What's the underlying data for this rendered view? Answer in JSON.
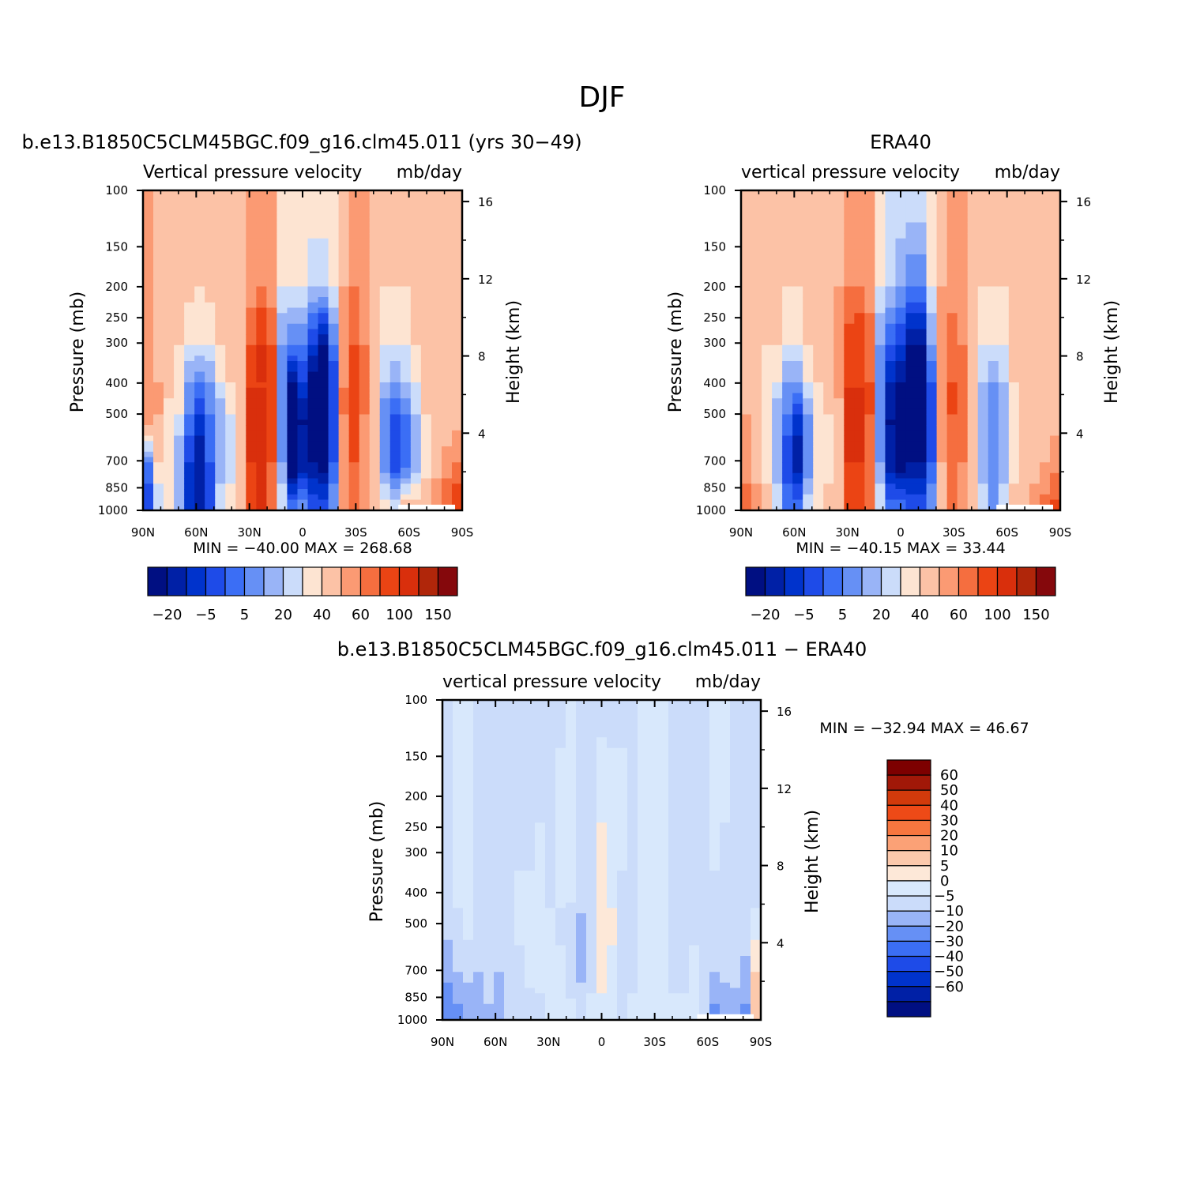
{
  "figure": {
    "title": "DJF"
  },
  "chart_data": [
    {
      "type": "heatmap",
      "id": "model",
      "title": "b.e13.B1850C5CLM45BGC.f09_g16.clm45.011 (yrs 30-49)",
      "subtitle_left": "Vertical pressure velocity",
      "subtitle_right": "mb/day",
      "ylabel": "Pressure (mb)",
      "y2label": "Height (km)",
      "x_ticks": [
        "90N",
        "60N",
        "30N",
        "0",
        "30S",
        "60S",
        "90S"
      ],
      "y_ticks": [
        "100",
        "150",
        "200",
        "250",
        "300",
        "400",
        "500",
        "700",
        "850",
        "1000"
      ],
      "y2_ticks": [
        "16",
        "12",
        "8",
        "4"
      ],
      "stats": "MIN = -40.00   MAX = 268.68",
      "colorbar_labels": [
        "-20",
        "-5",
        "5",
        "20",
        "40",
        "60",
        "100",
        "150"
      ],
      "field": {
        "x_centers": [
          -90,
          -84,
          -78,
          -72,
          -66,
          -60,
          -54,
          -48,
          -42,
          -36,
          -30,
          -24,
          -18,
          -12,
          -6,
          0,
          6,
          12,
          18,
          24,
          30,
          36,
          42,
          48,
          54,
          60,
          66,
          72,
          78,
          84,
          90
        ],
        "columns": [
          [
            20,
            20,
            20,
            25,
            30,
            -10,
            -20
          ],
          [
            15,
            15,
            15,
            20,
            20,
            10,
            0
          ],
          [
            15,
            15,
            15,
            15,
            5,
            5,
            10
          ],
          [
            15,
            15,
            10,
            5,
            5,
            -5,
            -5
          ],
          [
            12,
            12,
            5,
            -5,
            -10,
            -20,
            -25
          ],
          [
            12,
            10,
            5,
            -10,
            -20,
            -30,
            -25
          ],
          [
            12,
            12,
            5,
            -5,
            -10,
            -15,
            -20
          ],
          [
            12,
            12,
            10,
            5,
            -5,
            -5,
            5
          ],
          [
            15,
            12,
            10,
            10,
            5,
            0,
            10
          ],
          [
            20,
            15,
            15,
            10,
            10,
            12,
            15
          ],
          [
            20,
            25,
            40,
            60,
            60,
            60,
            45
          ],
          [
            20,
            30,
            60,
            60,
            60,
            60,
            60
          ],
          [
            20,
            25,
            40,
            40,
            40,
            40,
            30
          ],
          [
            10,
            5,
            -5,
            -10,
            -10,
            -5,
            5
          ],
          [
            10,
            5,
            -10,
            -30,
            -40,
            -40,
            -10
          ],
          [
            10,
            5,
            -10,
            -20,
            -30,
            -30,
            -5
          ],
          [
            10,
            0,
            -20,
            -35,
            -40,
            -30,
            -15
          ],
          [
            10,
            0,
            -30,
            -40,
            -40,
            -35,
            -15
          ],
          [
            10,
            5,
            -10,
            -20,
            -20,
            -15,
            -5
          ],
          [
            15,
            20,
            25,
            30,
            30,
            25,
            20
          ],
          [
            20,
            30,
            40,
            45,
            45,
            40,
            30
          ],
          [
            20,
            25,
            30,
            35,
            30,
            25,
            25
          ],
          [
            15,
            15,
            15,
            10,
            10,
            10,
            10
          ],
          [
            15,
            10,
            5,
            0,
            -10,
            -10,
            10
          ],
          [
            15,
            10,
            5,
            -5,
            -15,
            -20,
            5
          ],
          [
            15,
            10,
            5,
            0,
            -10,
            -15,
            15
          ],
          [
            15,
            12,
            10,
            5,
            0,
            -5,
            15
          ],
          [
            15,
            15,
            15,
            15,
            10,
            5,
            20
          ],
          [
            10,
            10,
            10,
            10,
            10,
            15,
            30
          ],
          [
            10,
            10,
            10,
            10,
            10,
            25,
            40
          ],
          [
            10,
            10,
            10,
            10,
            15,
            30,
            50
          ]
        ]
      }
    },
    {
      "type": "heatmap",
      "id": "obs",
      "title": "ERA40",
      "subtitle_left": "vertical pressure velocity",
      "subtitle_right": "mb/day",
      "ylabel": "Pressure (mb)",
      "y2label": "Height (km)",
      "x_ticks": [
        "90N",
        "60N",
        "30N",
        "0",
        "30S",
        "60S",
        "90S"
      ],
      "y_ticks": [
        "100",
        "150",
        "200",
        "250",
        "300",
        "400",
        "500",
        "700",
        "850",
        "1000"
      ],
      "y2_ticks": [
        "16",
        "12",
        "8",
        "4"
      ],
      "stats": "MIN = -40.15   MAX = 33.44",
      "colorbar_labels": [
        "-20",
        "-5",
        "5",
        "20",
        "40",
        "60",
        "100",
        "150"
      ],
      "field": {
        "x_centers": [
          -90,
          -84,
          -78,
          -72,
          -66,
          -60,
          -54,
          -48,
          -42,
          -36,
          -30,
          -24,
          -18,
          -12,
          -6,
          0,
          6,
          12,
          18,
          24,
          30,
          36,
          42,
          48,
          54,
          60,
          66,
          72,
          78,
          84,
          90
        ],
        "columns": [
          [
            15,
            15,
            15,
            15,
            20,
            25,
            35
          ],
          [
            15,
            12,
            10,
            10,
            10,
            15,
            25
          ],
          [
            15,
            12,
            10,
            5,
            5,
            5,
            15
          ],
          [
            15,
            12,
            10,
            5,
            -5,
            -5,
            5
          ],
          [
            12,
            10,
            5,
            -5,
            -10,
            -20,
            -10
          ],
          [
            12,
            10,
            5,
            -5,
            -20,
            -30,
            -10
          ],
          [
            12,
            10,
            10,
            5,
            -5,
            -10,
            5
          ],
          [
            15,
            12,
            15,
            10,
            5,
            5,
            10
          ],
          [
            15,
            15,
            20,
            15,
            10,
            5,
            15
          ],
          [
            15,
            20,
            30,
            25,
            15,
            15,
            20
          ],
          [
            20,
            30,
            45,
            60,
            60,
            60,
            40
          ],
          [
            20,
            30,
            50,
            60,
            60,
            60,
            50
          ],
          [
            20,
            25,
            35,
            40,
            40,
            35,
            30
          ],
          [
            10,
            5,
            -5,
            -10,
            -10,
            -5,
            5
          ],
          [
            5,
            0,
            -15,
            -25,
            -30,
            -30,
            -10
          ],
          [
            5,
            -5,
            -20,
            -30,
            -35,
            -35,
            -10
          ],
          [
            5,
            -10,
            -30,
            -40,
            -40,
            -30,
            -15
          ],
          [
            5,
            -10,
            -30,
            -40,
            -40,
            -30,
            -15
          ],
          [
            10,
            5,
            -5,
            -15,
            -20,
            -15,
            -5
          ],
          [
            15,
            20,
            25,
            25,
            25,
            20,
            15
          ],
          [
            20,
            25,
            35,
            40,
            40,
            35,
            30
          ],
          [
            20,
            25,
            30,
            35,
            35,
            30,
            25
          ],
          [
            15,
            15,
            15,
            15,
            15,
            15,
            15
          ],
          [
            12,
            10,
            5,
            0,
            -5,
            -5,
            5
          ],
          [
            12,
            10,
            5,
            -5,
            -10,
            -10,
            -5
          ],
          [
            12,
            10,
            5,
            0,
            -5,
            -5,
            5
          ],
          [
            15,
            12,
            10,
            10,
            5,
            5,
            15
          ],
          [
            15,
            15,
            15,
            15,
            10,
            10,
            20
          ],
          [
            10,
            10,
            10,
            10,
            10,
            15,
            25
          ],
          [
            10,
            10,
            10,
            10,
            10,
            20,
            35
          ],
          [
            10,
            10,
            10,
            10,
            15,
            25,
            45
          ]
        ]
      }
    },
    {
      "type": "heatmap",
      "id": "diff",
      "title": "b.e13.B1850C5CLM45BGC.f09_g16.clm45.011 - ERA40",
      "subtitle_left": "vertical pressure velocity",
      "subtitle_right": "mb/day",
      "ylabel": "Pressure (mb)",
      "y2label": "Height (km)",
      "x_ticks": [
        "90N",
        "60N",
        "30N",
        "0",
        "30S",
        "60S",
        "90S"
      ],
      "y_ticks": [
        "100",
        "150",
        "200",
        "250",
        "300",
        "400",
        "500",
        "700",
        "850",
        "1000"
      ],
      "y2_ticks": [
        "16",
        "12",
        "8",
        "4"
      ],
      "stats": "MIN = -32.94   MAX = 46.67",
      "colorbar_labels": [
        "60",
        "50",
        "40",
        "30",
        "20",
        "10",
        "5",
        "0",
        "-5",
        "-10",
        "-20",
        "-30",
        "-40",
        "-50",
        "-60"
      ],
      "field": {
        "x_centers": [
          -90,
          -84,
          -78,
          -72,
          -66,
          -60,
          -54,
          -48,
          -42,
          -36,
          -30,
          -24,
          -18,
          -12,
          -6,
          0,
          6,
          12,
          18,
          24,
          30,
          36,
          42,
          48,
          54,
          60,
          66,
          72,
          78,
          84,
          90
        ],
        "columns": [
          [
            -2,
            -2,
            -2,
            -2,
            -3,
            -8,
            -15
          ],
          [
            2,
            2,
            2,
            2,
            -2,
            -5,
            -12
          ],
          [
            2,
            2,
            2,
            2,
            2,
            -3,
            -10
          ],
          [
            -2,
            -2,
            -2,
            -2,
            -2,
            -5,
            -8
          ],
          [
            -2,
            -2,
            -2,
            -2,
            -2,
            -3,
            -6
          ],
          [
            -2,
            -2,
            -2,
            -2,
            -2,
            -5,
            -8
          ],
          [
            -2,
            -2,
            -2,
            -2,
            -2,
            -3,
            -5
          ],
          [
            -2,
            -2,
            -2,
            2,
            2,
            -2,
            -5
          ],
          [
            -2,
            -2,
            -2,
            2,
            2,
            2,
            -3
          ],
          [
            -2,
            -2,
            2,
            2,
            2,
            2,
            -2
          ],
          [
            -2,
            -2,
            -2,
            -2,
            2,
            2,
            2
          ],
          [
            -2,
            2,
            2,
            2,
            -2,
            2,
            2
          ],
          [
            2,
            2,
            2,
            2,
            -3,
            -3,
            2
          ],
          [
            -2,
            -3,
            -3,
            -3,
            -6,
            -6,
            -2
          ],
          [
            -2,
            -2,
            -2,
            -2,
            -3,
            -2,
            2
          ],
          [
            -2,
            3,
            7,
            10,
            8,
            6,
            4
          ],
          [
            -2,
            2,
            4,
            4,
            6,
            4,
            2
          ],
          [
            -2,
            2,
            2,
            -3,
            -5,
            -2,
            -2
          ],
          [
            -2,
            -2,
            -2,
            -2,
            -2,
            -2,
            2
          ],
          [
            2,
            2,
            2,
            2,
            2,
            2,
            2
          ],
          [
            2,
            2,
            2,
            2,
            2,
            2,
            2
          ],
          [
            2,
            2,
            2,
            2,
            2,
            2,
            2
          ],
          [
            -2,
            -2,
            -2,
            -2,
            -2,
            -2,
            2
          ],
          [
            -2,
            -2,
            -2,
            -2,
            -2,
            -2,
            2
          ],
          [
            -2,
            -2,
            -2,
            -2,
            -2,
            2,
            2
          ],
          [
            -2,
            -2,
            -2,
            -2,
            -2,
            -2,
            -3
          ],
          [
            2,
            2,
            2,
            -2,
            -2,
            -5,
            -12
          ],
          [
            2,
            2,
            -2,
            -2,
            -2,
            -3,
            -10
          ],
          [
            -2,
            -2,
            -2,
            -2,
            -2,
            -3,
            -8
          ],
          [
            -2,
            -2,
            -2,
            -2,
            -3,
            -6,
            -12
          ],
          [
            -2,
            -2,
            -2,
            -2,
            2,
            10,
            15
          ]
        ]
      }
    }
  ],
  "palettes": {
    "main": [
      "#000f82",
      "#0020a6",
      "#0033cc",
      "#1e4be8",
      "#3b6ef5",
      "#6690f5",
      "#99b4f7",
      "#cbdcfa",
      "#fde4d2",
      "#fcc2a6",
      "#fb9a73",
      "#f56e3f",
      "#eb4414",
      "#d92f0c",
      "#b0260a",
      "#85080c"
    ],
    "diff": [
      "#000f82",
      "#0020a6",
      "#0033cc",
      "#1e4be8",
      "#3b6ef5",
      "#6690f5",
      "#99b4f7",
      "#cbdcfa",
      "#d8e8fc",
      "#fde8d8",
      "#fcc9ac",
      "#fba176",
      "#f7763f",
      "#ee4a17",
      "#d23a0b",
      "#a11808",
      "#7d0000"
    ]
  },
  "thresholds": {
    "main": [
      -30,
      -25,
      -20,
      -15,
      -10,
      -5,
      0,
      5,
      10,
      20,
      30,
      40,
      60,
      80,
      100
    ],
    "diff": [
      -60,
      -50,
      -40,
      -30,
      -20,
      -10,
      -5,
      0,
      5,
      10,
      20,
      30,
      40,
      50,
      60
    ]
  }
}
